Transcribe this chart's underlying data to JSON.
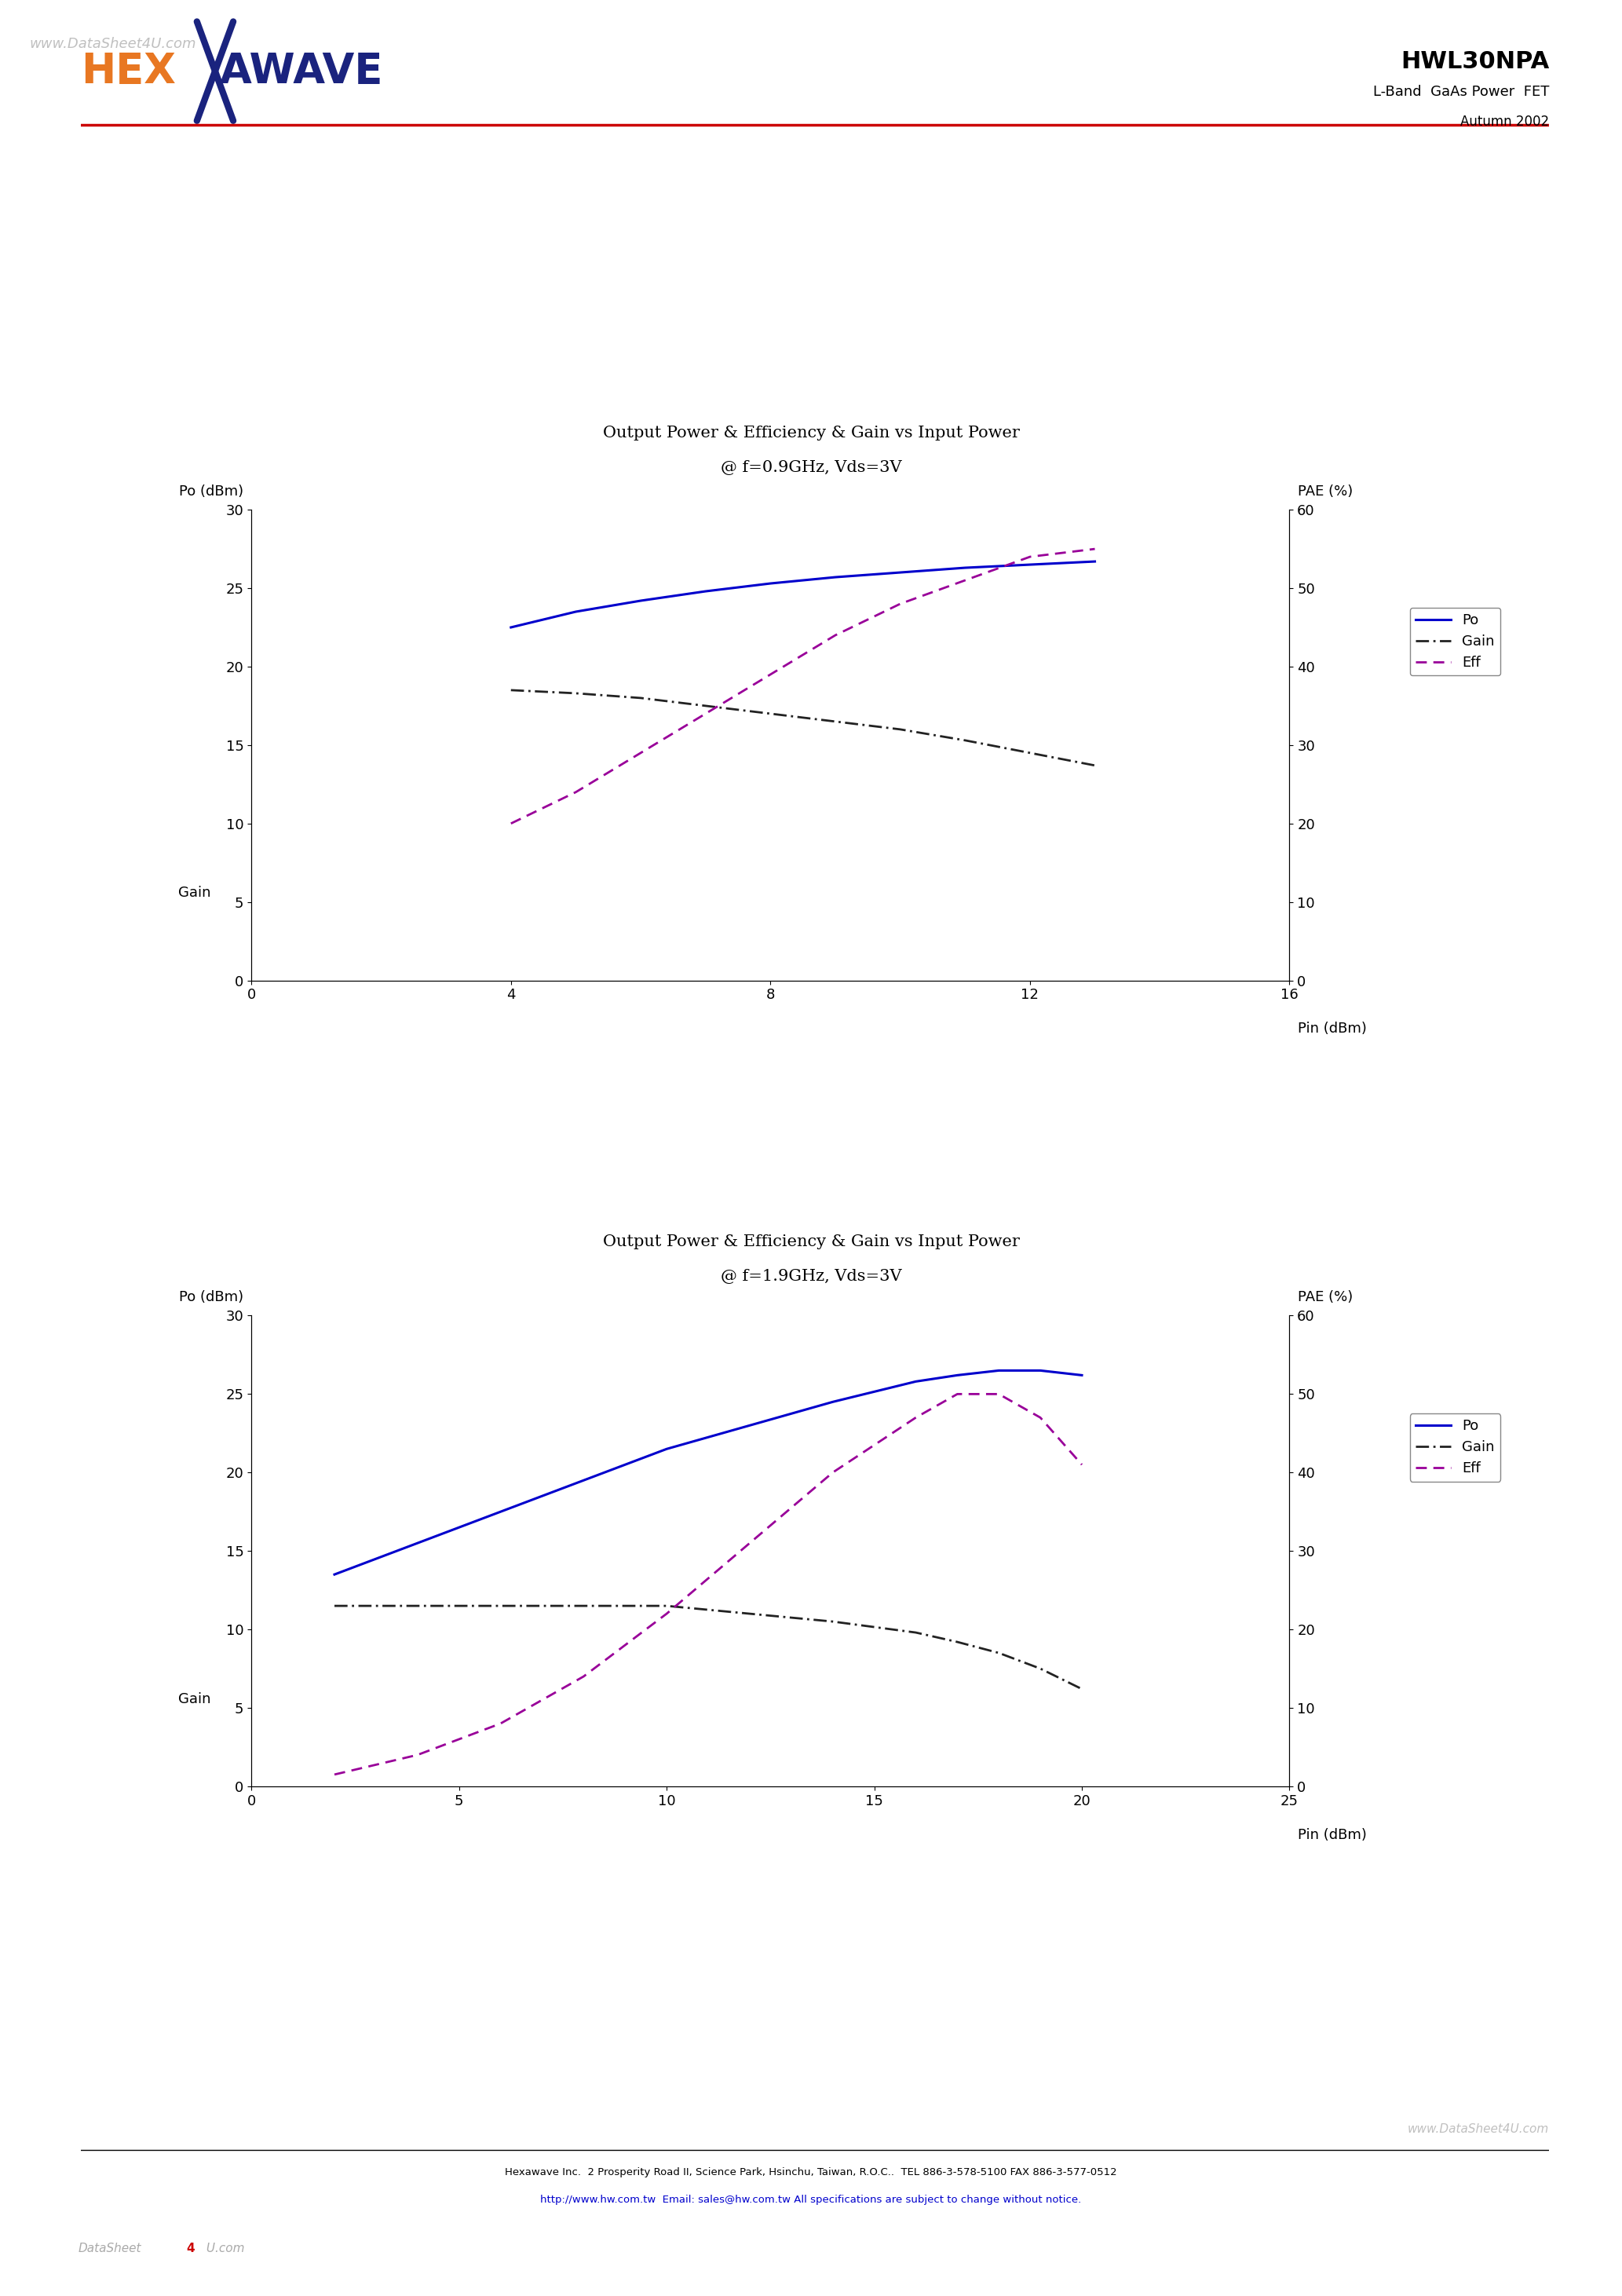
{
  "page_title": "HWL30NPA",
  "page_subtitle": "L-Band  GaAs Power  FET",
  "page_date": "Autumn 2002",
  "watermark_top": "www.DataSheet4U.com",
  "watermark_bottom": "www.DataSheet4U.com",
  "chart1": {
    "title_line1": "Output Power & Efficiency & Gain vs Input Power",
    "title_line2": "@ f=0.9GHz, Vds=3V",
    "xlabel": "Pin (dBm)",
    "ylabel_left": "Po (dBm)",
    "ylabel_right": "PAE (%)",
    "ylabel_gain": "Gain",
    "xlim": [
      0,
      16
    ],
    "ylim_left": [
      0,
      30
    ],
    "ylim_right": [
      0,
      60
    ],
    "xticks": [
      0,
      4,
      8,
      12,
      16
    ],
    "yticks_left": [
      0,
      5,
      10,
      15,
      20,
      25,
      30
    ],
    "yticks_right": [
      0,
      10,
      20,
      30,
      40,
      50,
      60
    ],
    "po_x": [
      4.0,
      5.0,
      6.0,
      7.0,
      8.0,
      9.0,
      10.0,
      11.0,
      12.0,
      13.0
    ],
    "po_y": [
      22.5,
      23.5,
      24.2,
      24.8,
      25.3,
      25.7,
      26.0,
      26.3,
      26.5,
      26.7
    ],
    "gain_x": [
      4.0,
      5.0,
      6.0,
      7.0,
      8.0,
      9.0,
      10.0,
      11.0,
      12.0,
      13.0
    ],
    "gain_y": [
      18.5,
      18.3,
      18.0,
      17.5,
      17.0,
      16.5,
      16.0,
      15.3,
      14.5,
      13.7
    ],
    "eff_x": [
      4.0,
      5.0,
      6.0,
      7.0,
      8.0,
      9.0,
      10.0,
      11.0,
      12.0,
      13.0
    ],
    "eff_y": [
      20.0,
      24.0,
      29.0,
      34.0,
      39.0,
      44.0,
      48.0,
      51.0,
      54.0,
      55.0
    ],
    "po_color": "#0000cc",
    "gain_color": "#222222",
    "eff_color": "#990099"
  },
  "chart2": {
    "title_line1": "Output Power & Efficiency & Gain vs Input Power",
    "title_line2": "@ f=1.9GHz, Vds=3V",
    "xlabel": "Pin (dBm)",
    "ylabel_left": "Po (dBm)",
    "ylabel_right": "PAE (%)",
    "ylabel_gain": "Gain",
    "xlim": [
      0,
      25
    ],
    "ylim_left": [
      0,
      30
    ],
    "ylim_right": [
      0,
      60
    ],
    "xticks": [
      0,
      5,
      10,
      15,
      20,
      25
    ],
    "yticks_left": [
      0,
      5,
      10,
      15,
      20,
      25,
      30
    ],
    "yticks_right": [
      0,
      10,
      20,
      30,
      40,
      50,
      60
    ],
    "po_x": [
      2.0,
      4.0,
      6.0,
      8.0,
      10.0,
      12.0,
      14.0,
      16.0,
      17.0,
      18.0,
      19.0,
      20.0
    ],
    "po_y": [
      13.5,
      15.5,
      17.5,
      19.5,
      21.5,
      23.0,
      24.5,
      25.8,
      26.2,
      26.5,
      26.5,
      26.2
    ],
    "gain_x": [
      2.0,
      4.0,
      6.0,
      8.0,
      10.0,
      12.0,
      14.0,
      16.0,
      17.0,
      18.0,
      19.0,
      20.0
    ],
    "gain_y": [
      11.5,
      11.5,
      11.5,
      11.5,
      11.5,
      11.0,
      10.5,
      9.8,
      9.2,
      8.5,
      7.5,
      6.2
    ],
    "eff_x": [
      2.0,
      4.0,
      6.0,
      8.0,
      10.0,
      12.0,
      14.0,
      16.0,
      17.0,
      18.0,
      19.0,
      20.0
    ],
    "eff_y": [
      1.5,
      4.0,
      8.0,
      14.0,
      22.0,
      31.0,
      40.0,
      47.0,
      50.0,
      50.0,
      47.0,
      41.0
    ],
    "po_color": "#0000cc",
    "gain_color": "#222222",
    "eff_color": "#990099"
  },
  "footer_text": "Hexawave Inc.  2 Prosperity Road II, Science Park, Hsinchu, Taiwan, R.O.C..  TEL 886-3-578-5100 FAX 886-3-577-0512",
  "footer_url": "http://www.hw.com.tw",
  "footer_email": "sales@hw.com.tw",
  "footer_note": " All specifications are subject to change without notice.",
  "logo_hex_color": "#e87722",
  "logo_wave_color": "#1a237e",
  "header_line_color": "#cc0000",
  "background_color": "#ffffff"
}
